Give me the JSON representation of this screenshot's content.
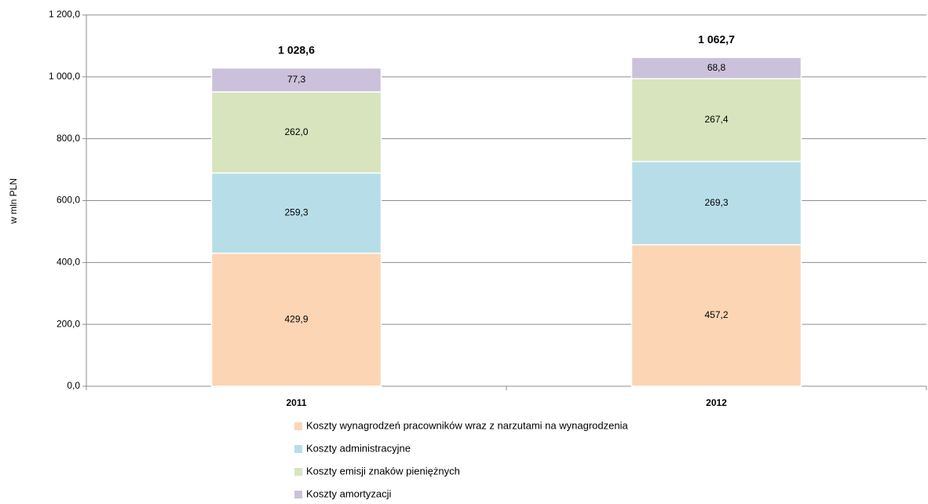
{
  "chart_data": {
    "type": "stacked_bar",
    "y_label": "w mln PLN",
    "categories": [
      "2011",
      "2012"
    ],
    "series": [
      {
        "name": "Koszty wynagrodzeń pracowników wraz z narzutami na wynagrodzenia",
        "color": "#fcd5b5",
        "values": [
          429.9,
          457.2
        ],
        "value_labels": [
          "429,9",
          "457,2"
        ]
      },
      {
        "name": "Koszty administracyjne",
        "color": "#b7dee8",
        "values": [
          259.3,
          269.3
        ],
        "value_labels": [
          "259,3",
          "269,3"
        ]
      },
      {
        "name": "Koszty emisji znaków pieniężnych",
        "color": "#d7e4bd",
        "values": [
          262.0,
          267.4
        ],
        "value_labels": [
          "262,0",
          "267,4"
        ]
      },
      {
        "name": "Koszty amortyzacji",
        "color": "#ccc1da",
        "values": [
          77.3,
          68.8
        ],
        "value_labels": [
          "77,3",
          "68,8"
        ]
      }
    ],
    "totals": [
      1028.6,
      1062.7
    ],
    "total_labels": [
      "1 028,6",
      "1 062,7"
    ],
    "ylim": [
      0,
      1200
    ],
    "yticks": [
      {
        "value": 0,
        "label": "0,0"
      },
      {
        "value": 200,
        "label": "200,0"
      },
      {
        "value": 400,
        "label": "400,0"
      },
      {
        "value": 600,
        "label": "600,0"
      },
      {
        "value": 800,
        "label": "800,0"
      },
      {
        "value": 1000,
        "label": "1 000,0"
      },
      {
        "value": 1200,
        "label": "1 200,0"
      }
    ],
    "grid": true,
    "legend": "bottom"
  }
}
